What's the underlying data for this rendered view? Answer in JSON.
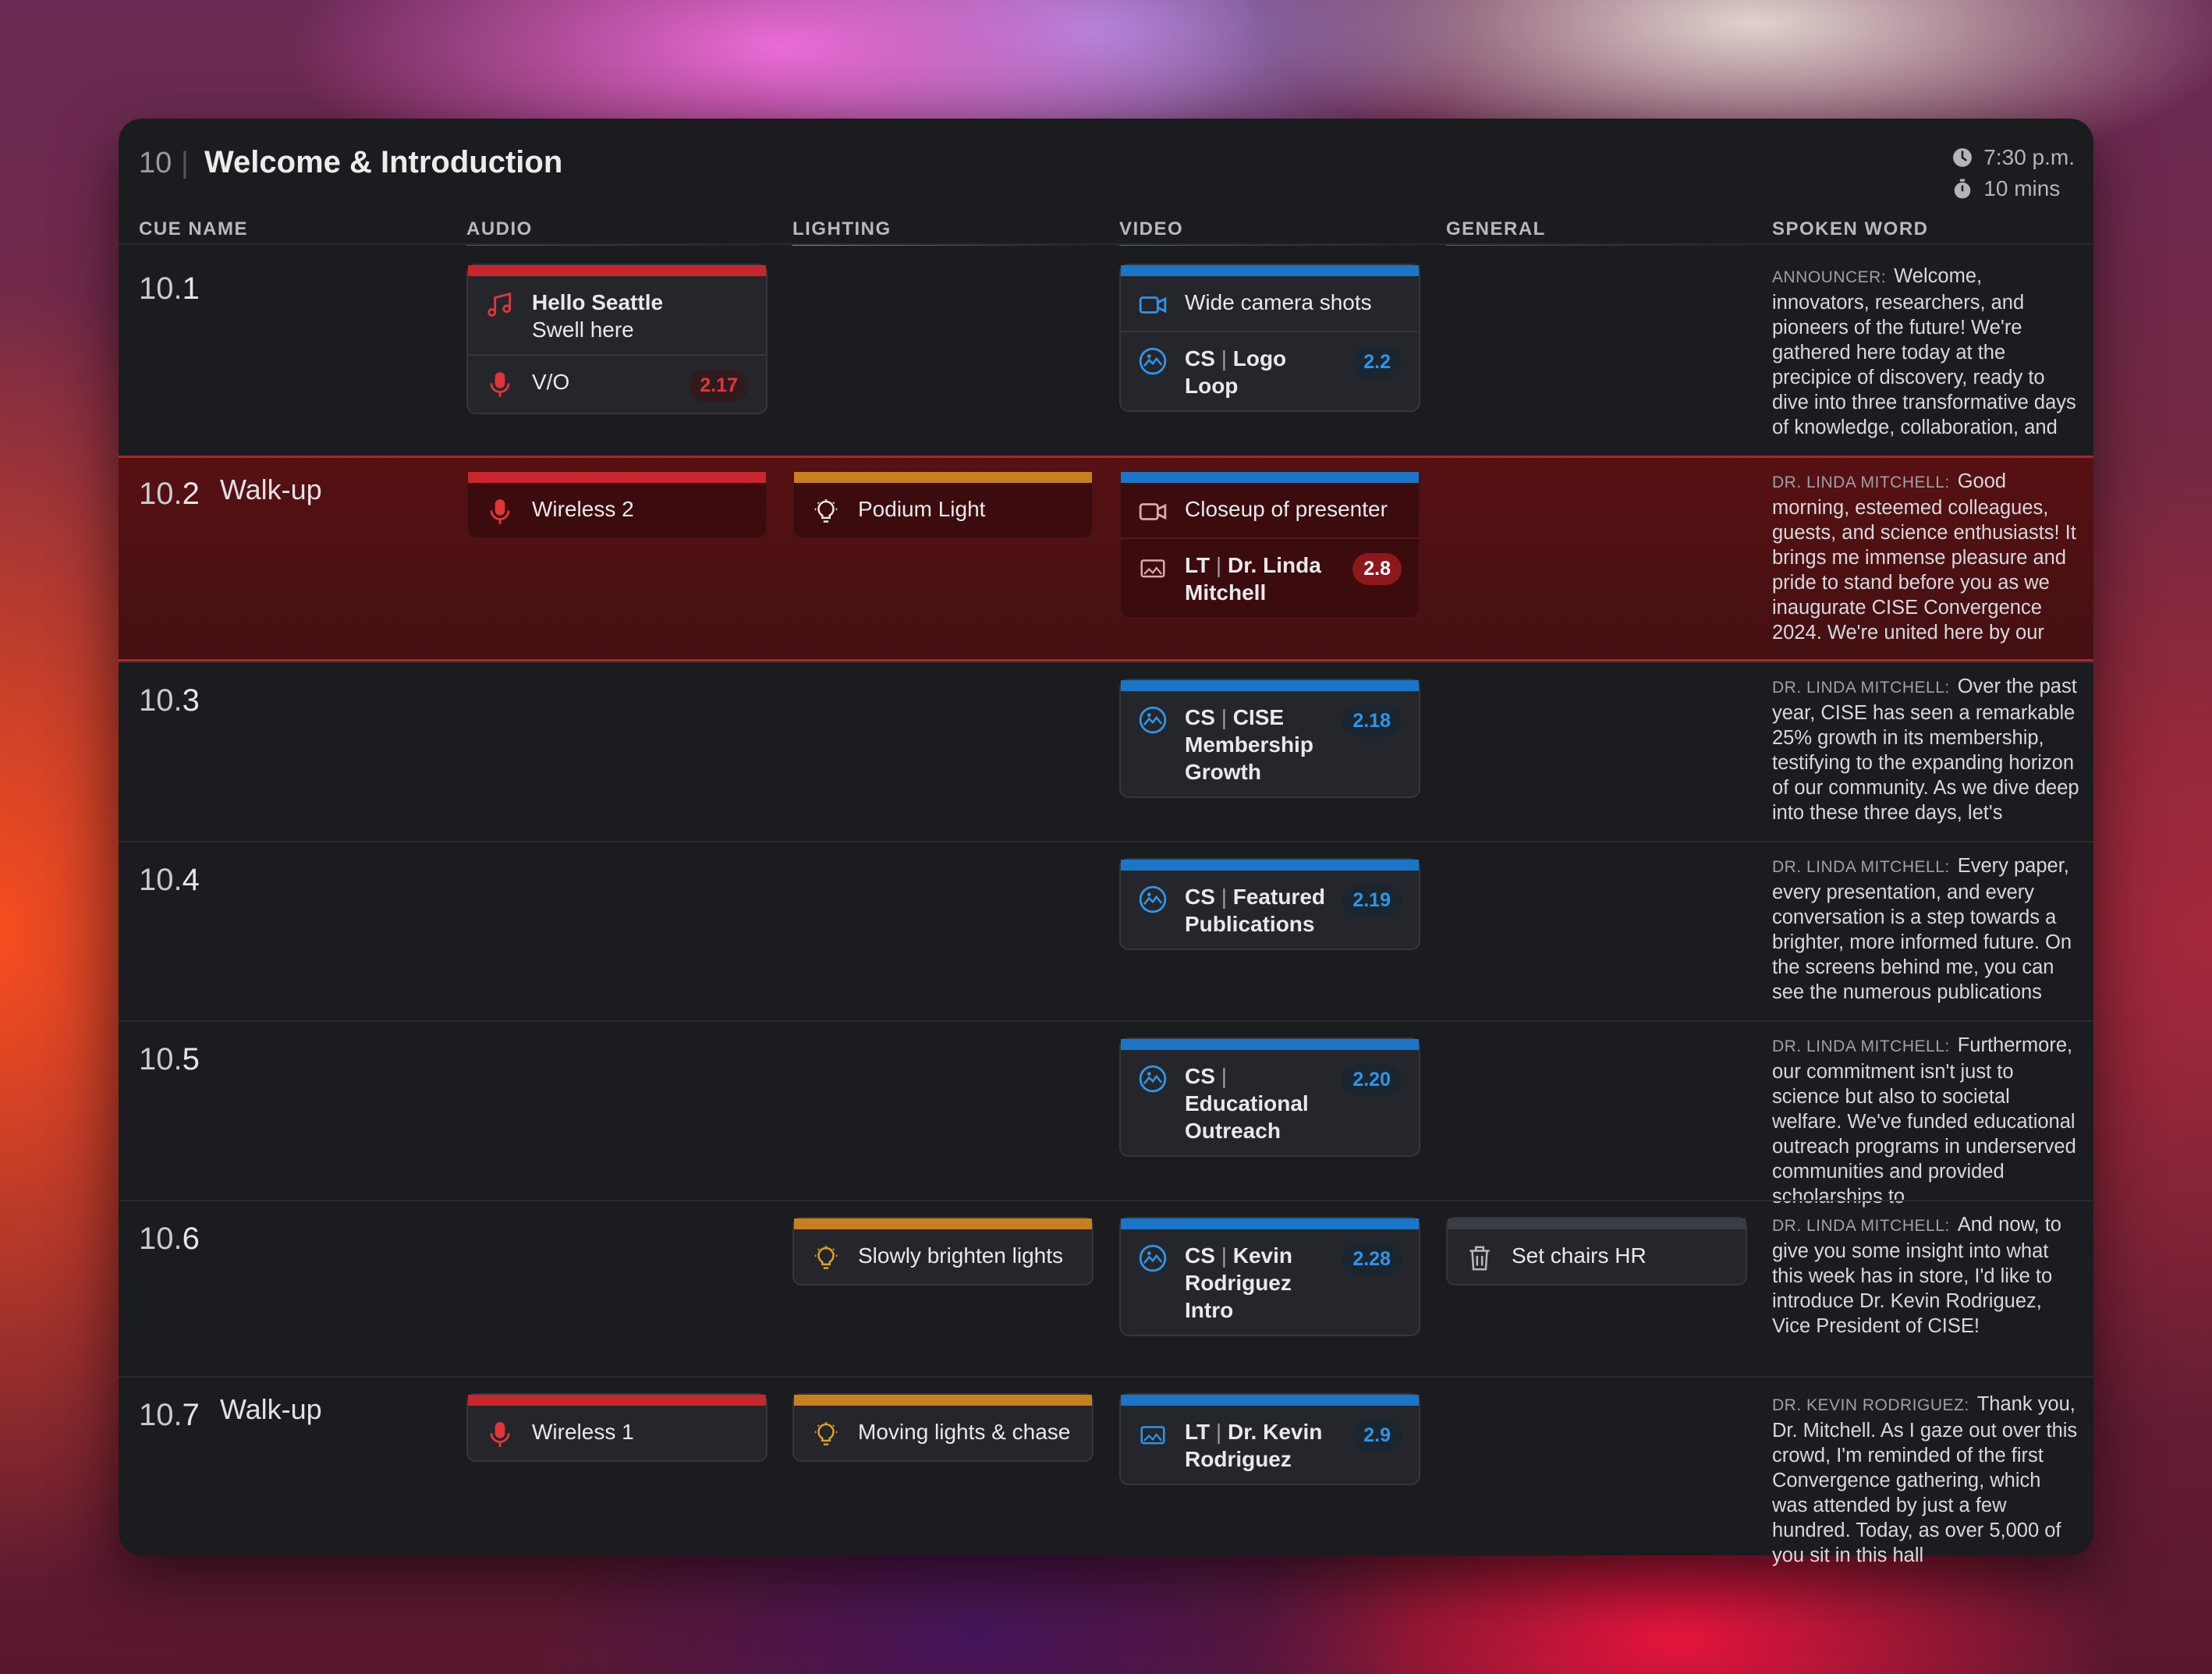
{
  "header": {
    "number": "10",
    "separator": "|",
    "title": "Welcome & Introduction",
    "time": "7:30 p.m.",
    "duration": "10 mins"
  },
  "columns": [
    "CUE NAME",
    "AUDIO",
    "LIGHTING",
    "VIDEO",
    "GENERAL",
    "SPOKEN WORD"
  ],
  "colors": {
    "audio": "#c8262c",
    "lighting": "#c8801c",
    "video": "#1976c9",
    "general": "#3a3d45",
    "active_row": "#b0242a"
  },
  "cues": [
    {
      "id_major": "10.",
      "id_minor": "1",
      "label": "",
      "audio": {
        "title": "Hello Seattle",
        "subtitle": "Swell here",
        "icon": "music-note-icon",
        "item2": "V/O",
        "item2_icon": "microphone-icon",
        "item2_badge": "2.17"
      },
      "video": {
        "item1": "Wide camera shots",
        "item1_icon": "video-camera-icon",
        "item2_prefix": "CS",
        "item2": "Logo Loop",
        "item2_icon": "slideshow-icon",
        "item2_badge": "2.2"
      },
      "spoken": {
        "speaker": "ANNOUNCER:",
        "text": "Welcome, innovators, researchers, and pioneers of the future! We're gathered here today at the precipice of discovery, ready to dive into three transformative days of knowledge, collaboration, and"
      }
    },
    {
      "id_major": "10.",
      "id_minor": "2",
      "label": "Walk-up",
      "audio": {
        "title": "Wireless 2",
        "icon": "microphone-icon"
      },
      "lighting": {
        "title": "Podium Light",
        "icon": "lightbulb-icon"
      },
      "video": {
        "item1": "Closeup of presenter",
        "item1_icon": "video-camera-icon",
        "item2_prefix": "LT",
        "item2": "Dr. Linda Mitchell",
        "item2_icon": "image-icon",
        "item2_badge": "2.8"
      },
      "spoken": {
        "speaker": "DR. LINDA MITCHELL:",
        "text": "Good morning, esteemed colleagues, guests, and science enthusiasts! It brings me immense pleasure and pride to stand before you as we inaugurate CISE Convergence 2024. We're united here by our"
      }
    },
    {
      "id_major": "10.",
      "id_minor": "3",
      "label": "",
      "video": {
        "item2_prefix": "CS",
        "item2": "CISE Membership Growth",
        "item2_icon": "slideshow-icon",
        "item2_badge": "2.18"
      },
      "spoken": {
        "speaker": "DR. LINDA MITCHELL:",
        "text": "Over the past year, CISE has seen a remarkable 25% growth in its membership, testifying to the expanding horizon of our community. As we dive deep into these three days, let's"
      }
    },
    {
      "id_major": "10.",
      "id_minor": "4",
      "label": "",
      "video": {
        "item2_prefix": "CS",
        "item2": "Featured Publications",
        "item2_icon": "slideshow-icon",
        "item2_badge": "2.19"
      },
      "spoken": {
        "speaker": "DR. LINDA MITCHELL:",
        "text": "Every paper, every presentation, and every conversation is a step towards a brighter, more informed future. On the screens behind me, you can see the numerous publications"
      }
    },
    {
      "id_major": "10.",
      "id_minor": "5",
      "label": "",
      "video": {
        "item2_prefix": "CS",
        "item2": "Educational Outreach",
        "item2_icon": "slideshow-icon",
        "item2_badge": "2.20"
      },
      "spoken": {
        "speaker": "DR. LINDA MITCHELL:",
        "text": "Furthermore, our commitment isn't just to science but also to societal welfare. We've funded educational outreach programs in underserved communities and provided scholarships to"
      }
    },
    {
      "id_major": "10.",
      "id_minor": "6",
      "label": "",
      "lighting": {
        "title": "Slowly brighten lights",
        "icon": "lightbulb-icon"
      },
      "video": {
        "item2_prefix": "CS",
        "item2": "Kevin Rodriguez Intro",
        "item2_icon": "slideshow-icon",
        "item2_badge": "2.28"
      },
      "general": {
        "title": "Set chairs HR",
        "icon": "trash-can-icon"
      },
      "spoken": {
        "speaker": "DR. LINDA MITCHELL:",
        "text": "And now, to give you some insight into what this week has in store, I'd like to introduce Dr. Kevin Rodriguez, Vice President of CISE!"
      }
    },
    {
      "id_major": "10.",
      "id_minor": "7",
      "label": "Walk-up",
      "audio": {
        "title": "Wireless 1",
        "icon": "microphone-icon"
      },
      "lighting": {
        "title": "Moving lights & chase",
        "icon": "lightbulb-icon"
      },
      "video": {
        "item2_prefix": "LT",
        "item2": "Dr. Kevin Rodriguez",
        "item2_icon": "image-icon",
        "item2_badge": "2.9"
      },
      "spoken": {
        "speaker": "DR. KEVIN RODRIGUEZ:",
        "text": "Thank you, Dr. Mitchell. As I gaze out over this crowd, I'm reminded of the first Convergence gathering, which was attended by just a few hundred. Today, as over 5,000 of you sit in this hall"
      }
    }
  ]
}
